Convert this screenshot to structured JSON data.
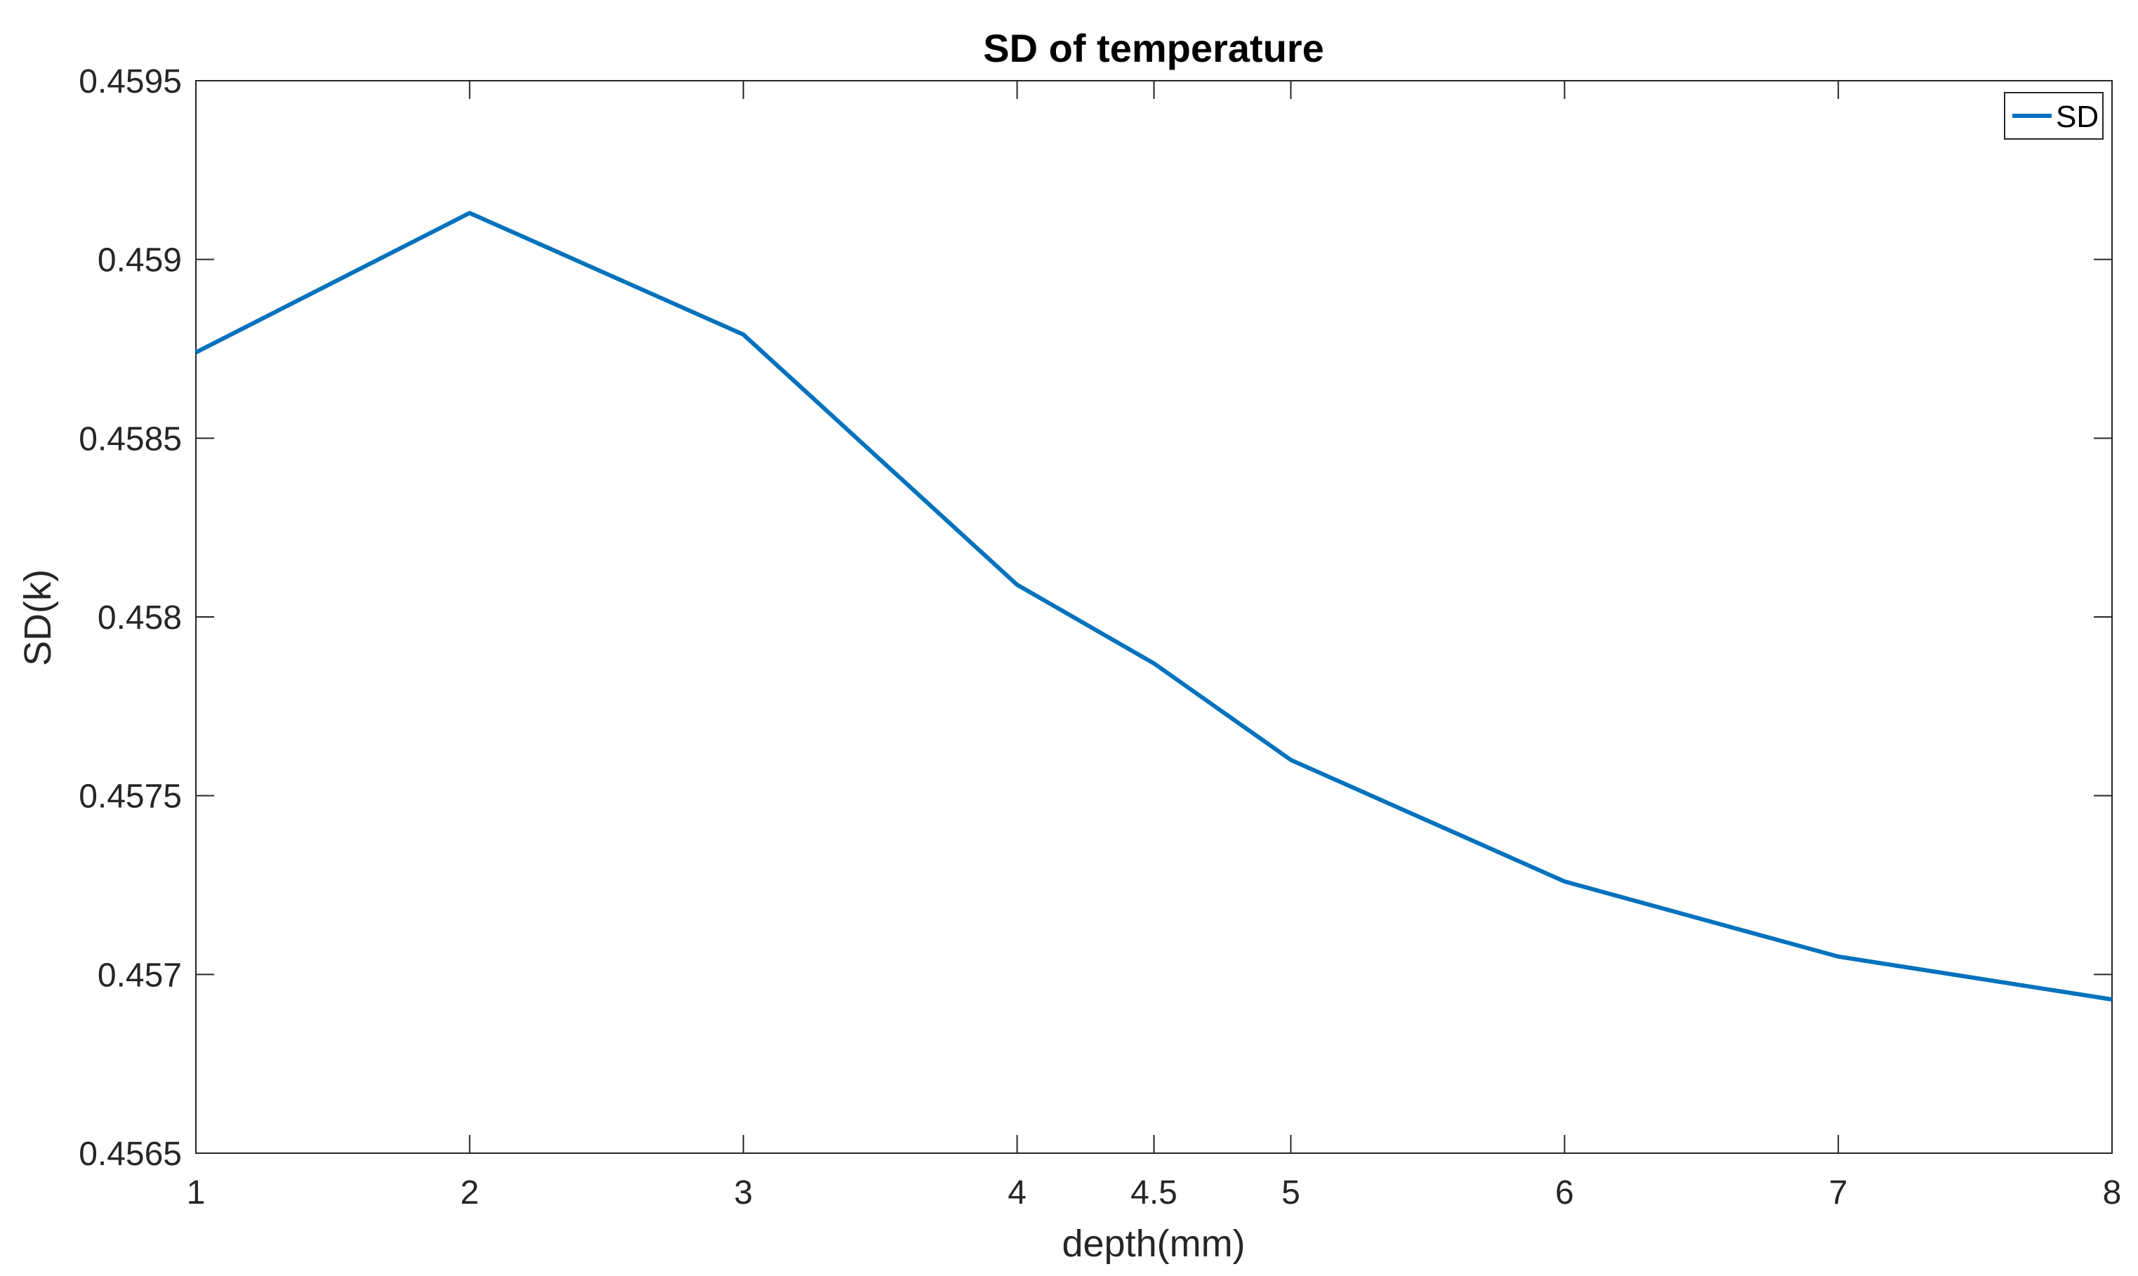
{
  "chart_data": {
    "type": "line",
    "title": "SD of temperature",
    "xlabel": "depth(mm)",
    "ylabel": "SD(k)",
    "xlim": [
      1,
      8
    ],
    "ylim": [
      0.4565,
      0.4595
    ],
    "x_ticks": [
      1,
      2,
      3,
      4,
      4.5,
      5,
      6,
      7,
      8
    ],
    "x_tick_labels": [
      "1",
      "2",
      "3",
      "4",
      "4.5",
      "5",
      "6",
      "7",
      "8"
    ],
    "y_ticks": [
      0.4565,
      0.457,
      0.4575,
      0.458,
      0.4585,
      0.459,
      0.4595
    ],
    "y_tick_labels": [
      "0.4565",
      "0.457",
      "0.4575",
      "0.458",
      "0.4585",
      "0.459",
      "0.4595"
    ],
    "grid": false,
    "legend_position": "top-right",
    "series": [
      {
        "name": "SD",
        "color": "#0072BD",
        "x": [
          1,
          2,
          3,
          4,
          4.5,
          5,
          6,
          7,
          8
        ],
        "values": [
          0.45874,
          0.45913,
          0.45879,
          0.45809,
          0.45787,
          0.4576,
          0.45726,
          0.45705,
          0.45693
        ]
      }
    ]
  }
}
